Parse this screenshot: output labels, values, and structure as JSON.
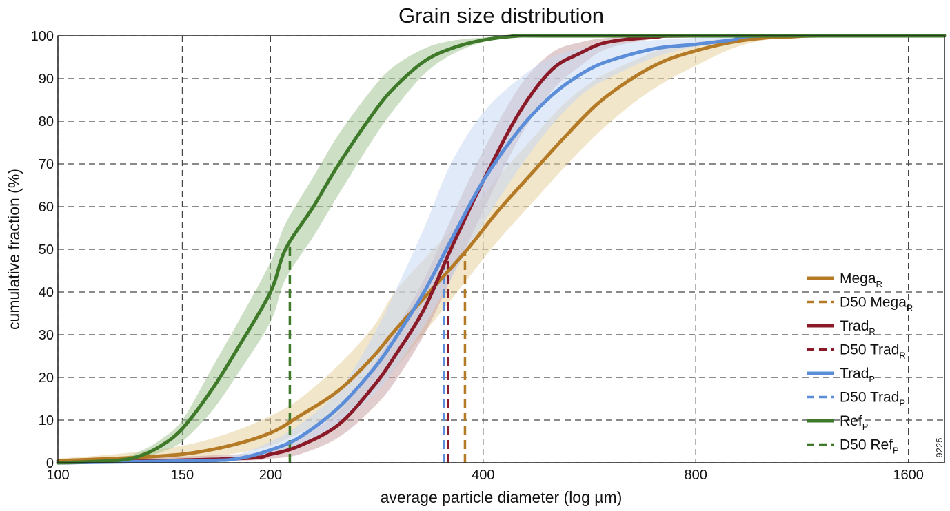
{
  "chart_data": {
    "type": "line",
    "title": "Grain size distribution",
    "xlabel": "average particle diameter (log µm)",
    "ylabel": "cumulative fraction (%)",
    "x_scale": "log",
    "xlim": [
      100,
      1800
    ],
    "ylim": [
      0,
      100
    ],
    "x_ticks": [
      100,
      150,
      200,
      400,
      800,
      1600
    ],
    "y_ticks": [
      0,
      10,
      20,
      30,
      40,
      50,
      60,
      70,
      80,
      90,
      100
    ],
    "grid": true,
    "legend_position": "bottom-right",
    "watermark": "9225",
    "series": [
      {
        "key": "mega",
        "name": "Mega",
        "subscript": "R",
        "color": "#B57A25",
        "band_color": "#E5D09E",
        "x": [
          100,
          120,
          150,
          175,
          200,
          220,
          250,
          280,
          300,
          340,
          380,
          420,
          470,
          520,
          580,
          650,
          720,
          800,
          900,
          1000,
          1100,
          1200,
          1800
        ],
        "y": [
          0.5,
          1,
          2,
          4,
          7,
          11,
          17,
          25,
          31,
          41,
          50,
          59,
          68,
          76,
          84,
          90,
          94,
          96.5,
          98.5,
          99.5,
          99.8,
          100,
          100
        ],
        "lower": [
          0,
          0.5,
          1,
          2,
          4,
          7,
          11,
          17,
          22,
          33,
          43,
          52,
          61,
          69,
          77,
          84,
          89,
          93,
          97,
          99,
          99.6,
          100,
          100
        ],
        "upper": [
          1,
          2,
          4,
          7,
          11,
          15,
          23,
          32,
          40,
          50,
          58,
          67,
          76,
          84,
          90,
          94,
          97,
          98.5,
          99.5,
          100,
          100,
          100,
          100
        ],
        "d50": 377
      },
      {
        "key": "trad_r",
        "name": "Trad",
        "subscript": "R",
        "color": "#8B1A28",
        "band_color": "#C9A2A6",
        "x": [
          100,
          180,
          200,
          220,
          250,
          280,
          300,
          330,
          360,
          400,
          450,
          500,
          550,
          600,
          700,
          800,
          1800
        ],
        "y": [
          0,
          1,
          2,
          4,
          9,
          18,
          25,
          36,
          50,
          66,
          82,
          92,
          96,
          98.5,
          99.7,
          100,
          100
        ],
        "lower": [
          0,
          0.5,
          1,
          2,
          6,
          13,
          19,
          30,
          43,
          59,
          76,
          87,
          93,
          97,
          99.3,
          100,
          100
        ],
        "upper": [
          0.5,
          2,
          3,
          6,
          12,
          23,
          31,
          43,
          57,
          73,
          88,
          96,
          98.5,
          99.5,
          100,
          100,
          100
        ],
        "d50": 357
      },
      {
        "key": "trad_p",
        "name": "Trad",
        "subscript": "P",
        "color": "#5B8DD9",
        "band_color": "#C9D8F2",
        "x": [
          100,
          160,
          180,
          200,
          220,
          250,
          280,
          300,
          330,
          360,
          400,
          450,
          500,
          550,
          600,
          700,
          800,
          900,
          1000,
          1800
        ],
        "y": [
          0,
          0.5,
          1,
          3,
          6,
          13,
          22,
          29,
          40,
          52,
          66,
          78,
          86,
          91,
          94,
          97,
          98,
          99,
          100,
          100
        ],
        "lower": [
          0,
          0.2,
          0.5,
          1.5,
          4,
          9,
          16,
          22,
          32,
          43,
          56,
          69,
          79,
          86,
          90,
          95,
          97.5,
          98.8,
          100,
          100
        ],
        "upper": [
          0,
          1,
          2,
          5,
          9,
          17,
          30,
          40,
          55,
          70,
          82,
          90,
          95,
          97,
          98,
          99,
          99.5,
          100,
          100,
          100
        ],
        "d50": 352
      },
      {
        "key": "ref_p",
        "name": "Ref",
        "subscript": "P",
        "color": "#3E7A2A",
        "band_color": "#A4C795",
        "x": [
          100,
          120,
          130,
          140,
          150,
          165,
          180,
          200,
          210,
          230,
          250,
          280,
          300,
          330,
          360,
          400,
          450,
          500,
          1800
        ],
        "y": [
          0,
          0.5,
          1.5,
          4,
          8,
          17,
          27,
          40,
          50,
          60,
          70,
          82,
          88,
          94,
          97,
          99,
          100,
          100,
          100
        ],
        "lower": [
          0,
          0.3,
          1,
          2.5,
          5,
          12,
          21,
          33,
          43,
          53,
          63,
          76,
          83,
          91,
          95.5,
          98.5,
          99.8,
          100,
          100
        ],
        "upper": [
          0.3,
          1,
          2.5,
          5.5,
          10,
          22,
          33,
          47,
          56,
          67,
          77,
          88,
          93,
          97,
          98.8,
          99.6,
          100,
          100,
          100
        ],
        "d50": 213
      }
    ],
    "legend": [
      {
        "key": "mega",
        "style": "solid",
        "prefix": "",
        "label": "Mega",
        "sub": "R"
      },
      {
        "key": "mega",
        "style": "dashed",
        "prefix": "D50 ",
        "label": "Mega",
        "sub": "R"
      },
      {
        "key": "trad_r",
        "style": "solid",
        "prefix": "",
        "label": "Trad",
        "sub": "R"
      },
      {
        "key": "trad_r",
        "style": "dashed",
        "prefix": "D50 ",
        "label": "Trad",
        "sub": "R"
      },
      {
        "key": "trad_p",
        "style": "solid",
        "prefix": "",
        "label": "Trad",
        "sub": "P"
      },
      {
        "key": "trad_p",
        "style": "dashed",
        "prefix": "D50 ",
        "label": "Trad",
        "sub": "P"
      },
      {
        "key": "ref_p",
        "style": "solid",
        "prefix": "",
        "label": "Ref",
        "sub": "P"
      },
      {
        "key": "ref_p",
        "style": "dashed",
        "prefix": "D50 ",
        "label": "Ref",
        "sub": "P"
      }
    ]
  }
}
